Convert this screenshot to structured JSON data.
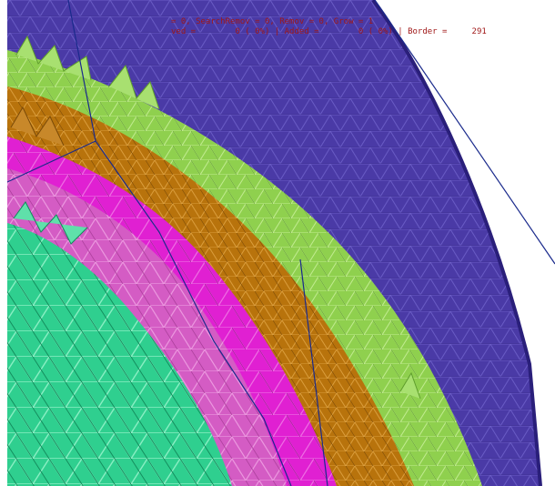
{
  "status": {
    "line1": "= 0, SearchRemov = 0, Remov = 0, Grow = 1",
    "line2": "ved =        0 ( 0%) | Added =        0 ( 0%) | Border =     291"
  },
  "colors": {
    "background": "#ffffff",
    "purple_band": "#4a3aa6",
    "green_band": "#8fd04e",
    "orange_band": "#b8730c",
    "magenta_band": "#e020d2",
    "pink_band": "#d45cc4",
    "teal_core": "#2fcf8f",
    "wireframe": "#1a2a8c",
    "status_text": "#a01818"
  },
  "icons": [
    "mesh-viewport"
  ]
}
